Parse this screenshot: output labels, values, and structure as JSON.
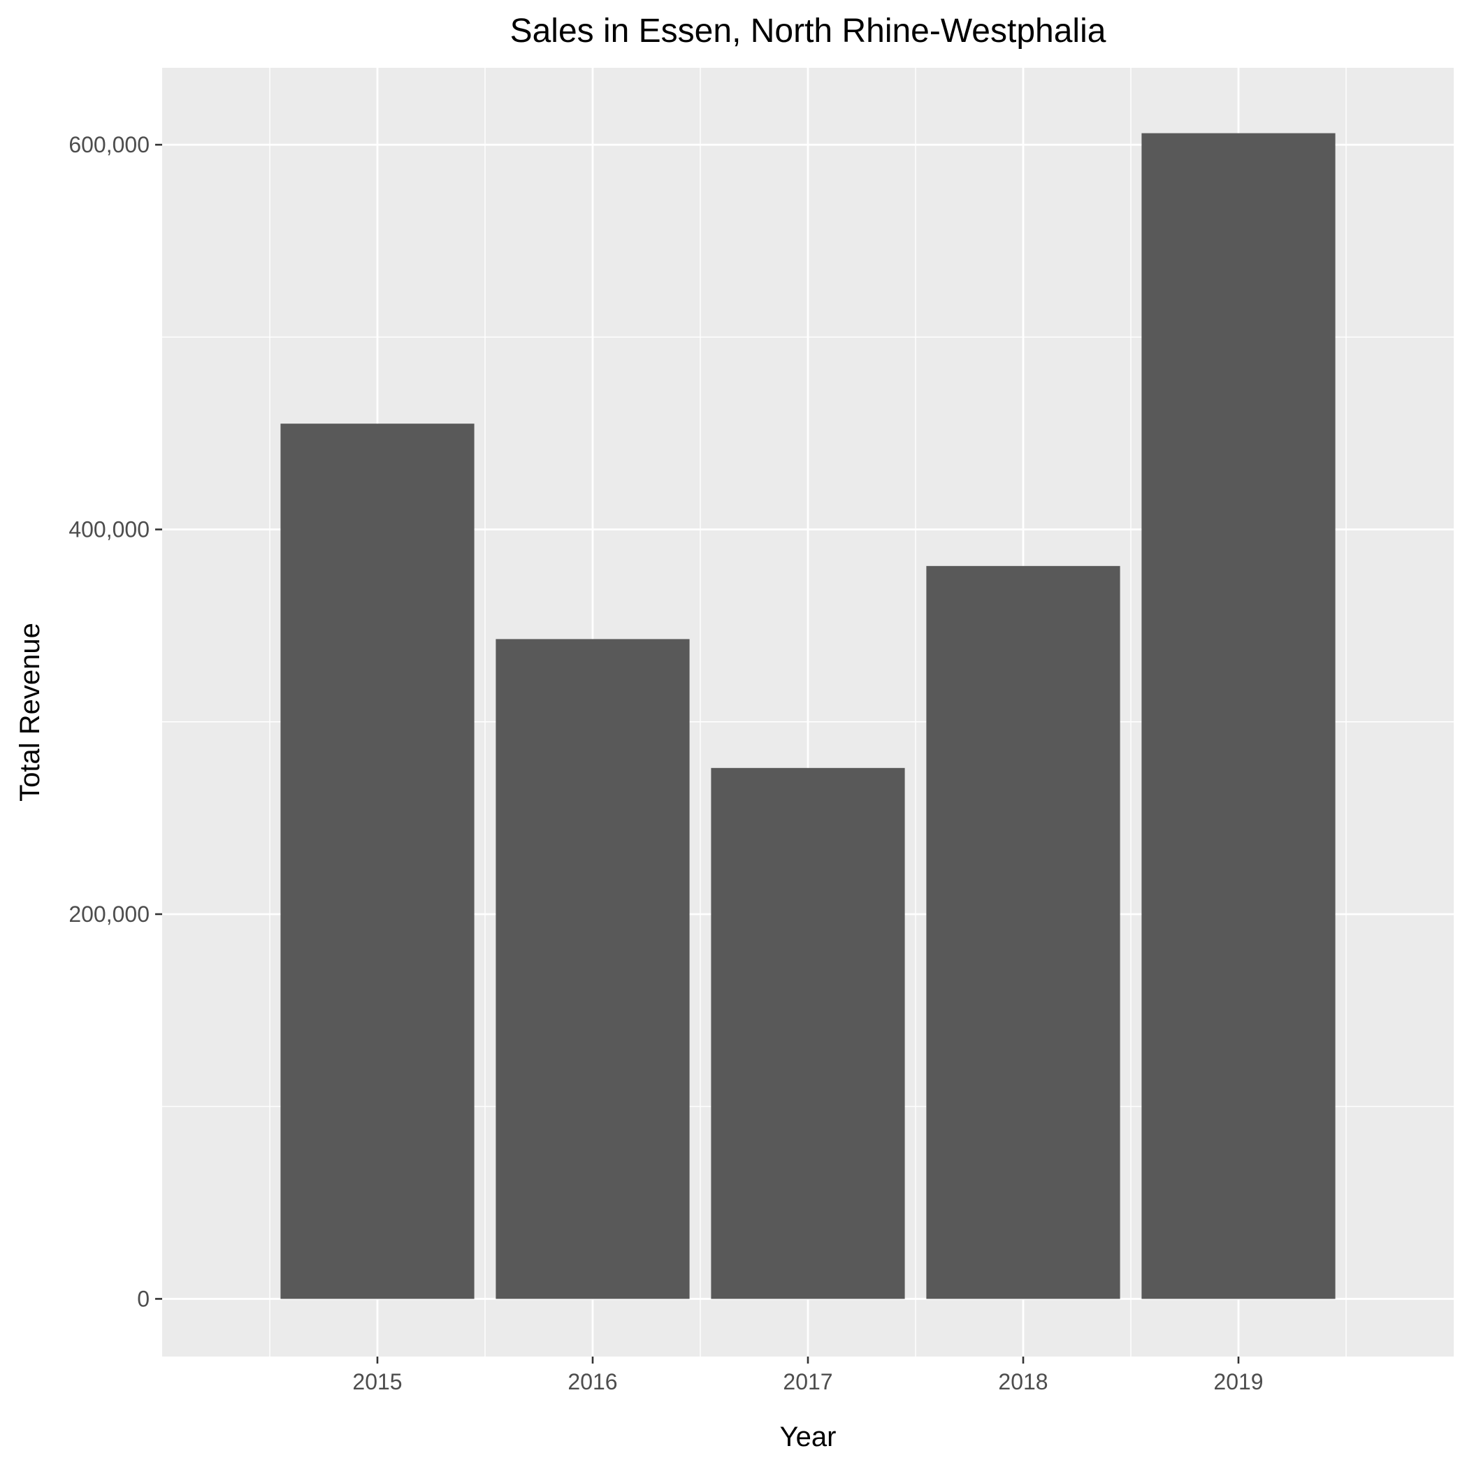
{
  "chart_data": {
    "type": "bar",
    "title": "Sales in Essen, North Rhine-Westphalia",
    "xlabel": "Year",
    "ylabel": "Total Revenue",
    "categories": [
      "2015",
      "2016",
      "2017",
      "2018",
      "2019"
    ],
    "values": [
      455000,
      343000,
      276000,
      381000,
      606000
    ],
    "ylim": [
      -30000,
      640000
    ],
    "y_ticks": [
      0,
      200000,
      400000,
      600000
    ],
    "y_tick_labels": [
      "0",
      "200,000",
      "400,000",
      "600,000"
    ],
    "grid": true,
    "colors": {
      "panel_background": "#EBEBEB",
      "grid_line": "#FFFFFF",
      "bar_fill": "#595959",
      "tick_text": "#4D4D4D",
      "tick_mark": "#333333"
    }
  }
}
